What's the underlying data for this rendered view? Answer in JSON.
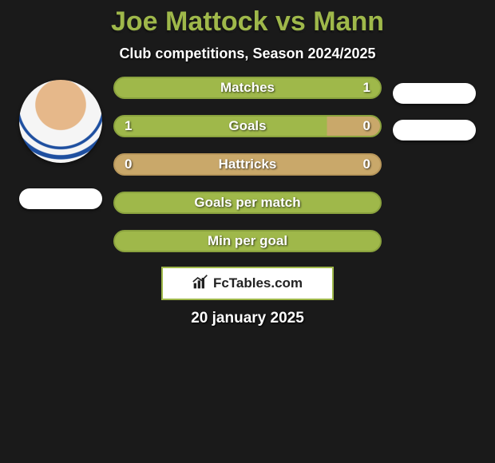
{
  "title": "Joe Mattock vs Mann",
  "subtitle": "Club competitions, Season 2024/2025",
  "date": "20 january 2025",
  "brand_label": "FcTables.com",
  "colors": {
    "accent": "#9fb84a",
    "accent_border": "#8aa23e",
    "neutral_fill": "#c9a86a",
    "neutral_border": "#b8975b",
    "bg": "#1a1a1a",
    "white": "#ffffff"
  },
  "bars": [
    {
      "label": "Matches",
      "left": "",
      "right": "1",
      "left_pct": 0,
      "right_pct": 100,
      "fill_color": "#9fb84a",
      "border_color": "#8aa23e"
    },
    {
      "label": "Goals",
      "left": "1",
      "right": "0",
      "left_pct": 80,
      "right_pct": 20,
      "fill_color": "#9fb84a",
      "right_fill_color": "#c9a86a",
      "border_color": "#8aa23e"
    },
    {
      "label": "Hattricks",
      "left": "0",
      "right": "0",
      "left_pct": 0,
      "right_pct": 0,
      "fill_color": "#c9a86a",
      "border_color": "#b8975b"
    },
    {
      "label": "Goals per match",
      "left": "",
      "right": "",
      "left_pct": 100,
      "right_pct": 0,
      "fill_color": "#9fb84a",
      "border_color": "#8aa23e"
    },
    {
      "label": "Min per goal",
      "left": "",
      "right": "",
      "left_pct": 100,
      "right_pct": 0,
      "fill_color": "#9fb84a",
      "border_color": "#8aa23e"
    }
  ],
  "left_pills": [
    true
  ],
  "right_pills": [
    true,
    true
  ]
}
